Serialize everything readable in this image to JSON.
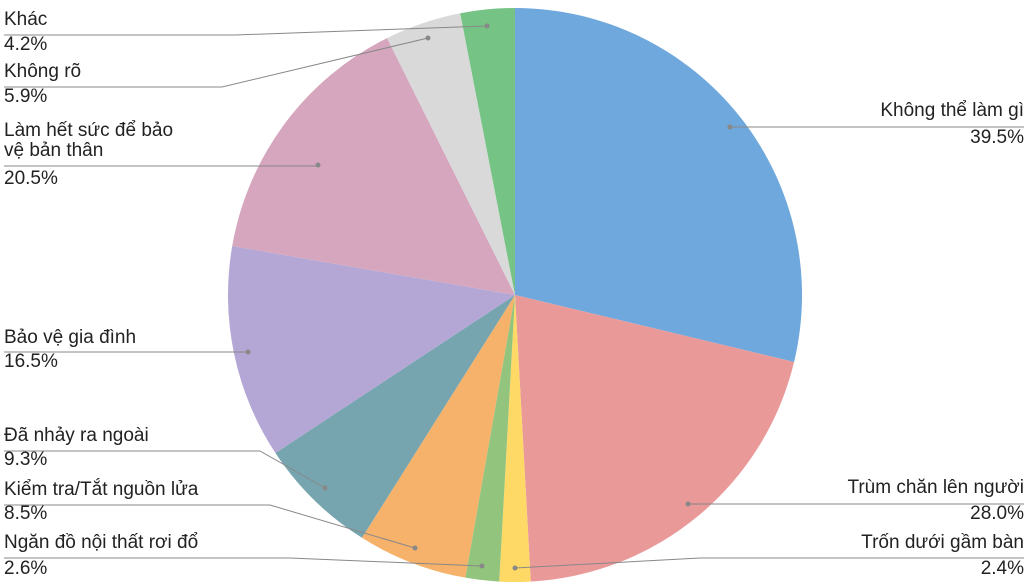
{
  "chart_data": {
    "type": "pie",
    "categories": [
      "Không thể làm gì",
      "Trùm chăn lên người",
      "Trốn dưới gầm bàn",
      "Ngăn đồ nội thất rơi đổ",
      "Kiểm tra/Tắt nguồn lửa",
      "Đã nhảy ra ngoài",
      "Bảo vệ gia đình",
      "Làm hết sức để bảo vệ bản thân",
      "Không rõ",
      "Khác"
    ],
    "values": [
      39.5,
      28.0,
      2.4,
      2.6,
      8.5,
      9.3,
      16.5,
      20.5,
      5.9,
      4.2
    ],
    "value_labels": [
      "39.5%",
      "28.0%",
      "2.4%",
      "2.6%",
      "8.5%",
      "9.3%",
      "16.5%",
      "20.5%",
      "5.9%",
      "4.2%"
    ],
    "colors": [
      "#6fa8dc",
      "#ea9999",
      "#ffd966",
      "#93c47d",
      "#f6b26b",
      "#76a5af",
      "#b4a7d6",
      "#d5a6bd",
      "#d9d9d9",
      "#76c386"
    ]
  }
}
